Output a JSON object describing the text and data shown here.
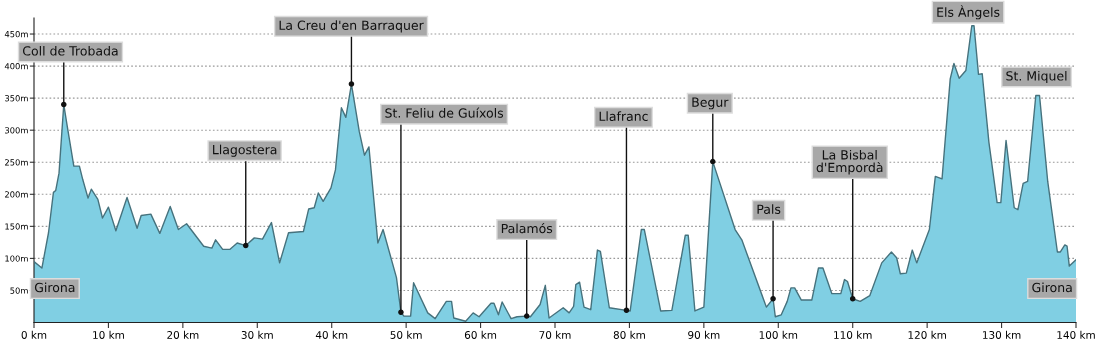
{
  "chart_data": {
    "type": "area",
    "x": [
      0,
      1.06,
      1.95,
      2.61,
      2.92,
      3.36,
      4.0,
      4.47,
      5.35,
      6.1,
      6.55,
      7.26,
      7.7,
      8.58,
      9.2,
      10.0,
      11.0,
      12.5,
      13.85,
      14.4,
      15.7,
      16.9,
      18.3,
      19.4,
      20.5,
      22.8,
      23.9,
      24.4,
      25.35,
      26.3,
      27.3,
      28.45,
      29.6,
      30.7,
      31.9,
      33.0,
      34.2,
      36.2,
      36.9,
      37.65,
      38.2,
      38.85,
      39.9,
      40.5,
      41.3,
      41.9,
      42.65,
      43.7,
      44.4,
      45.0,
      46.2,
      46.9,
      48.7,
      49.3,
      49.7,
      50.6,
      51.0,
      52.9,
      53.9,
      55.4,
      56.1,
      56.4,
      58.0,
      59.0,
      59.8,
      61.4,
      61.8,
      62.4,
      62.9,
      64.1,
      64.9,
      66.2,
      66.7,
      68.0,
      68.7,
      69.2,
      71.1,
      71.9,
      72.5,
      72.8,
      73.3,
      73.9,
      74.8,
      75.7,
      76.1,
      77.3,
      79.6,
      80.1,
      81.6,
      82.0,
      84.2,
      85.7,
      87.5,
      87.9,
      88.8,
      90.0,
      91.2,
      94.2,
      95.1,
      98.4,
      99.3,
      99.6,
      100.4,
      101.2,
      101.7,
      102.2,
      103.1,
      104.5,
      105.4,
      106.0,
      107.2,
      108.4,
      108.9,
      109.3,
      110.0,
      111.0,
      112.3,
      113.9,
      115.2,
      115.9,
      116.4,
      117.2,
      118.0,
      118.6,
      120.3,
      121.1,
      122.0,
      123.1,
      123.6,
      124.3,
      125.2,
      126.0,
      126.3,
      126.9,
      127.4,
      128.3,
      129.4,
      129.9,
      130.6,
      131.7,
      132.2,
      132.9,
      133.5,
      134.6,
      135.1,
      136.2,
      137.5,
      137.9,
      138.5,
      138.8,
      139.1,
      140.0
    ],
    "series": [
      {
        "color": "#80cfe3",
        "values": [
          95,
          85,
          140,
          203,
          206,
          233,
          340,
          306,
          244,
          244,
          223,
          194,
          208,
          192,
          163,
          180,
          143,
          195,
          147,
          167,
          169,
          139,
          181,
          145,
          154,
          119,
          116,
          129,
          114,
          114,
          124,
          120,
          132,
          130,
          156,
          93,
          140,
          142,
          177,
          179,
          202,
          189,
          210,
          238,
          335,
          320,
          372,
          298,
          261,
          274,
          124,
          145,
          70,
          16,
          10,
          10,
          62,
          15,
          6,
          33,
          33,
          7,
          2,
          15,
          9,
          30,
          30,
          12,
          32,
          6,
          9,
          10,
          9,
          28,
          58,
          7,
          23,
          15,
          25,
          59,
          63,
          24,
          20,
          113,
          111,
          23,
          19,
          18,
          145,
          145,
          18,
          19,
          136,
          136,
          18,
          24,
          251,
          145,
          129,
          24,
          37,
          9,
          12,
          33,
          54,
          54,
          35,
          35,
          85,
          85,
          45,
          45,
          67,
          64,
          37,
          33,
          42,
          93,
          110,
          101,
          76,
          77,
          113,
          93,
          145,
          228,
          224,
          380,
          404,
          381,
          393,
          463,
          463,
          387,
          388,
          281,
          187,
          187,
          284,
          179,
          176,
          217,
          220,
          354,
          354,
          220,
          110,
          110,
          121,
          119,
          88,
          98
        ]
      }
    ],
    "xlim": [
      0,
      140
    ],
    "ylim": [
      0,
      475
    ],
    "xticks": [
      {
        "value": 0,
        "label": "0 km"
      },
      {
        "value": 10,
        "label": "10 km"
      },
      {
        "value": 20,
        "label": "20 km"
      },
      {
        "value": 30,
        "label": "30 km"
      },
      {
        "value": 40,
        "label": "40 km"
      },
      {
        "value": 50,
        "label": "50 km"
      },
      {
        "value": 60,
        "label": "60 km"
      },
      {
        "value": 70,
        "label": "70 km"
      },
      {
        "value": 80,
        "label": "80 km"
      },
      {
        "value": 90,
        "label": "90 km"
      },
      {
        "value": 100,
        "label": "100 km"
      },
      {
        "value": 110,
        "label": "110 km"
      },
      {
        "value": 120,
        "label": "120 km"
      },
      {
        "value": 130,
        "label": "130 km"
      },
      {
        "value": 140,
        "label": "140 km"
      }
    ],
    "yticks": [
      {
        "value": 50,
        "label": "50m"
      },
      {
        "value": 100,
        "label": "100m"
      },
      {
        "value": 150,
        "label": "150m"
      },
      {
        "value": 200,
        "label": "200m"
      },
      {
        "value": 250,
        "label": "250m"
      },
      {
        "value": 300,
        "label": "300m"
      },
      {
        "value": 350,
        "label": "350m"
      },
      {
        "value": 400,
        "label": "400m"
      },
      {
        "value": 450,
        "label": "450m"
      }
    ],
    "grid": "y",
    "annotations": [
      {
        "text": "Coll de Trobada",
        "x": 4.0,
        "y": 340
      },
      {
        "text": "Llagostera",
        "x": 28.45,
        "y": 120
      },
      {
        "text": "La Creu d'en Barraquer",
        "x": 42.65,
        "y": 372
      },
      {
        "text": "St. Feliu de Guíxols",
        "x": 49.3,
        "y": 16
      },
      {
        "text": "Palamós",
        "x": 66.2,
        "y": 10
      },
      {
        "text": "Llafranc",
        "x": 79.6,
        "y": 19
      },
      {
        "text": "Begur",
        "x": 91.2,
        "y": 251
      },
      {
        "text": "Pals",
        "x": 99.3,
        "y": 37
      },
      {
        "text": "La Bisbal\nd'Empordà",
        "x": 110.0,
        "y": 37
      },
      {
        "text": "Els Àngels",
        "x": 126.0,
        "y": 463
      },
      {
        "text": "St. Miquel",
        "x": 134.8,
        "y": 354
      },
      {
        "text": "Girona",
        "x": 0,
        "y": 95
      },
      {
        "text": "Girona",
        "x": 140.0,
        "y": 98
      }
    ]
  }
}
